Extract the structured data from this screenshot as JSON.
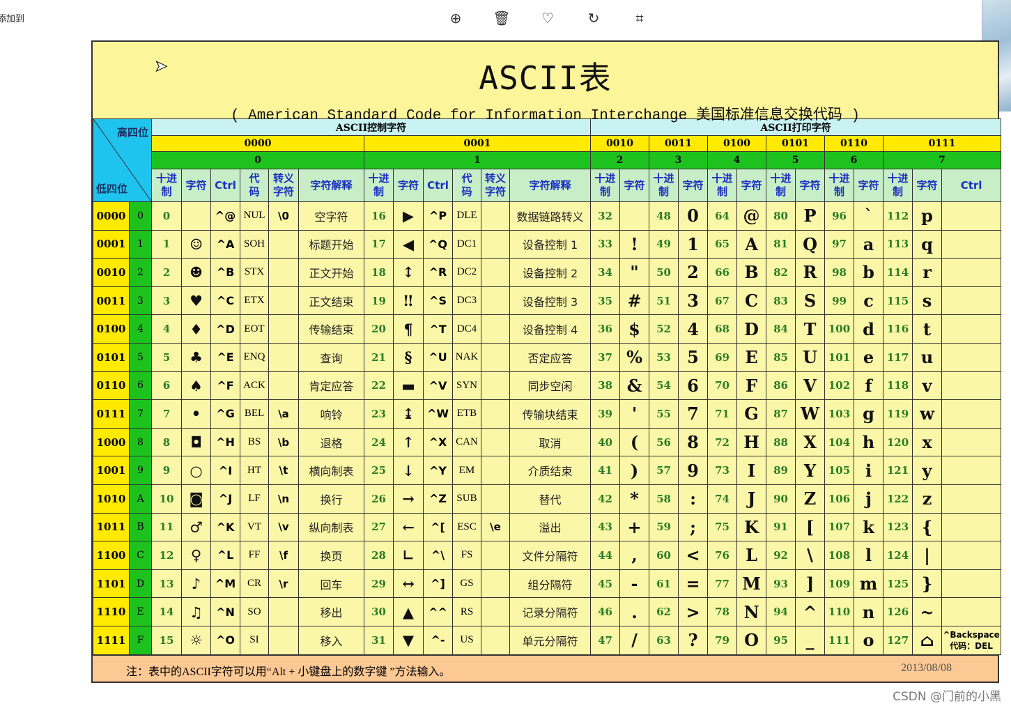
{
  "top_bar": {
    "left_text": "添加到",
    "icons": [
      "zoom-in-icon",
      "trash-icon",
      "heart-icon",
      "rotate-icon",
      "crop-icon"
    ]
  },
  "title": "ASCII表",
  "subtitle": "( American Standard Code for Information Interchange  美国标准信息交换代码 )",
  "headers": {
    "corner_high": "高四位",
    "corner_low": "低四位",
    "control_group": "ASCII控制字符",
    "print_group": "ASCII打印字符",
    "high_bits": [
      "0000",
      "0001",
      "0010",
      "0011",
      "0100",
      "0101",
      "0110",
      "0111"
    ],
    "high_hex": [
      "0",
      "1",
      "2",
      "3",
      "4",
      "5",
      "6",
      "7"
    ],
    "ctrl_cols": [
      "十进\n制",
      "字符",
      "Ctrl",
      "代\n码",
      "转义\n字符",
      "字符解释"
    ],
    "print_cols": [
      "十进\n制",
      "字符"
    ],
    "last_ctrl": "Ctrl"
  },
  "rows": [
    {
      "bin": "0000",
      "hex": "0",
      "c0": [
        "0",
        "",
        "^@",
        "NUL",
        "\\0",
        "空字符"
      ],
      "c1": [
        "16",
        "▶",
        "^P",
        "DLE",
        "",
        "数据链路转义"
      ],
      "p": [
        [
          "32",
          ""
        ],
        [
          "48",
          "0"
        ],
        [
          "64",
          "@"
        ],
        [
          "80",
          "P"
        ],
        [
          "96",
          "`"
        ],
        [
          "112",
          "p"
        ]
      ]
    },
    {
      "bin": "0001",
      "hex": "1",
      "c0": [
        "1",
        "☺",
        "^A",
        "SOH",
        "",
        "标题开始"
      ],
      "c1": [
        "17",
        "◀",
        "^Q",
        "DC1",
        "",
        "设备控制 1"
      ],
      "p": [
        [
          "33",
          "!"
        ],
        [
          "49",
          "1"
        ],
        [
          "65",
          "A"
        ],
        [
          "81",
          "Q"
        ],
        [
          "97",
          "a"
        ],
        [
          "113",
          "q"
        ]
      ]
    },
    {
      "bin": "0010",
      "hex": "2",
      "c0": [
        "2",
        "☻",
        "^B",
        "STX",
        "",
        "正文开始"
      ],
      "c1": [
        "18",
        "↕",
        "^R",
        "DC2",
        "",
        "设备控制 2"
      ],
      "p": [
        [
          "34",
          "\""
        ],
        [
          "50",
          "2"
        ],
        [
          "66",
          "B"
        ],
        [
          "82",
          "R"
        ],
        [
          "98",
          "b"
        ],
        [
          "114",
          "r"
        ]
      ]
    },
    {
      "bin": "0011",
      "hex": "3",
      "c0": [
        "3",
        "♥",
        "^C",
        "ETX",
        "",
        "正文结束"
      ],
      "c1": [
        "19",
        "‼",
        "^S",
        "DC3",
        "",
        "设备控制 3"
      ],
      "p": [
        [
          "35",
          "#"
        ],
        [
          "51",
          "3"
        ],
        [
          "67",
          "C"
        ],
        [
          "83",
          "S"
        ],
        [
          "99",
          "c"
        ],
        [
          "115",
          "s"
        ]
      ]
    },
    {
      "bin": "0100",
      "hex": "4",
      "c0": [
        "4",
        "♦",
        "^D",
        "EOT",
        "",
        "传输结束"
      ],
      "c1": [
        "20",
        "¶",
        "^T",
        "DC4",
        "",
        "设备控制 4"
      ],
      "p": [
        [
          "36",
          "$"
        ],
        [
          "52",
          "4"
        ],
        [
          "68",
          "D"
        ],
        [
          "84",
          "T"
        ],
        [
          "100",
          "d"
        ],
        [
          "116",
          "t"
        ]
      ]
    },
    {
      "bin": "0101",
      "hex": "5",
      "c0": [
        "5",
        "♣",
        "^E",
        "ENQ",
        "",
        "查询"
      ],
      "c1": [
        "21",
        "§",
        "^U",
        "NAK",
        "",
        "否定应答"
      ],
      "p": [
        [
          "37",
          "%"
        ],
        [
          "53",
          "5"
        ],
        [
          "69",
          "E"
        ],
        [
          "85",
          "U"
        ],
        [
          "101",
          "e"
        ],
        [
          "117",
          "u"
        ]
      ]
    },
    {
      "bin": "0110",
      "hex": "6",
      "c0": [
        "6",
        "♠",
        "^F",
        "ACK",
        "",
        "肯定应答"
      ],
      "c1": [
        "22",
        "▬",
        "^V",
        "SYN",
        "",
        "同步空闲"
      ],
      "p": [
        [
          "38",
          "&"
        ],
        [
          "54",
          "6"
        ],
        [
          "70",
          "F"
        ],
        [
          "86",
          "V"
        ],
        [
          "102",
          "f"
        ],
        [
          "118",
          "v"
        ]
      ]
    },
    {
      "bin": "0111",
      "hex": "7",
      "c0": [
        "7",
        "•",
        "^G",
        "BEL",
        "\\a",
        "响铃"
      ],
      "c1": [
        "23",
        "↨",
        "^W",
        "ETB",
        "",
        "传输块结束"
      ],
      "p": [
        [
          "39",
          "'"
        ],
        [
          "55",
          "7"
        ],
        [
          "71",
          "G"
        ],
        [
          "87",
          "W"
        ],
        [
          "103",
          "g"
        ],
        [
          "119",
          "w"
        ]
      ]
    },
    {
      "bin": "1000",
      "hex": "8",
      "c0": [
        "8",
        "◘",
        "^H",
        "BS",
        "\\b",
        "退格"
      ],
      "c1": [
        "24",
        "↑",
        "^X",
        "CAN",
        "",
        "取消"
      ],
      "p": [
        [
          "40",
          "("
        ],
        [
          "56",
          "8"
        ],
        [
          "72",
          "H"
        ],
        [
          "88",
          "X"
        ],
        [
          "104",
          "h"
        ],
        [
          "120",
          "x"
        ]
      ]
    },
    {
      "bin": "1001",
      "hex": "9",
      "c0": [
        "9",
        "○",
        "^I",
        "HT",
        "\\t",
        "横向制表"
      ],
      "c1": [
        "25",
        "↓",
        "^Y",
        "EM",
        "",
        "介质结束"
      ],
      "p": [
        [
          "41",
          ")"
        ],
        [
          "57",
          "9"
        ],
        [
          "73",
          "I"
        ],
        [
          "89",
          "Y"
        ],
        [
          "105",
          "i"
        ],
        [
          "121",
          "y"
        ]
      ]
    },
    {
      "bin": "1010",
      "hex": "A",
      "c0": [
        "10",
        "◙",
        "^J",
        "LF",
        "\\n",
        "换行"
      ],
      "c1": [
        "26",
        "→",
        "^Z",
        "SUB",
        "",
        "替代"
      ],
      "p": [
        [
          "42",
          "*"
        ],
        [
          "58",
          ":"
        ],
        [
          "74",
          "J"
        ],
        [
          "90",
          "Z"
        ],
        [
          "106",
          "j"
        ],
        [
          "122",
          "z"
        ]
      ]
    },
    {
      "bin": "1011",
      "hex": "B",
      "c0": [
        "11",
        "♂",
        "^K",
        "VT",
        "\\v",
        "纵向制表"
      ],
      "c1": [
        "27",
        "←",
        "^[",
        "ESC",
        "\\e",
        "溢出"
      ],
      "p": [
        [
          "43",
          "+"
        ],
        [
          "59",
          ";"
        ],
        [
          "75",
          "K"
        ],
        [
          "91",
          "["
        ],
        [
          "107",
          "k"
        ],
        [
          "123",
          "{"
        ]
      ]
    },
    {
      "bin": "1100",
      "hex": "C",
      "c0": [
        "12",
        "♀",
        "^L",
        "FF",
        "\\f",
        "换页"
      ],
      "c1": [
        "28",
        "∟",
        "^\\",
        "FS",
        "",
        "文件分隔符"
      ],
      "p": [
        [
          "44",
          ","
        ],
        [
          "60",
          "<"
        ],
        [
          "76",
          "L"
        ],
        [
          "92",
          "\\"
        ],
        [
          "108",
          "l"
        ],
        [
          "124",
          "|"
        ]
      ]
    },
    {
      "bin": "1101",
      "hex": "D",
      "c0": [
        "13",
        "♪",
        "^M",
        "CR",
        "\\r",
        "回车"
      ],
      "c1": [
        "29",
        "↔",
        "^]",
        "GS",
        "",
        "组分隔符"
      ],
      "p": [
        [
          "45",
          "-"
        ],
        [
          "61",
          "="
        ],
        [
          "77",
          "M"
        ],
        [
          "93",
          "]"
        ],
        [
          "109",
          "m"
        ],
        [
          "125",
          "}"
        ]
      ]
    },
    {
      "bin": "1110",
      "hex": "E",
      "c0": [
        "14",
        "♫",
        "^N",
        "SO",
        "",
        "移出"
      ],
      "c1": [
        "30",
        "▲",
        "^^",
        "RS",
        "",
        "记录分隔符"
      ],
      "p": [
        [
          "46",
          "."
        ],
        [
          "62",
          ">"
        ],
        [
          "78",
          "N"
        ],
        [
          "94",
          "^"
        ],
        [
          "110",
          "n"
        ],
        [
          "126",
          "~"
        ]
      ]
    },
    {
      "bin": "1111",
      "hex": "F",
      "c0": [
        "15",
        "☼",
        "^O",
        "SI",
        "",
        "移入"
      ],
      "c1": [
        "31",
        "▼",
        "^-",
        "US",
        "",
        "单元分隔符"
      ],
      "p": [
        [
          "47",
          "/"
        ],
        [
          "63",
          "?"
        ],
        [
          "79",
          "O"
        ],
        [
          "95",
          "_"
        ],
        [
          "111",
          "o"
        ],
        [
          "127",
          "⌂"
        ]
      ]
    }
  ],
  "del_ctrl": {
    "line1": "^Backspace",
    "line2": "代码：DEL"
  },
  "footer": {
    "note": "注：表中的ASCII字符可以用“Alt + 小键盘上的数字键 ”方法输入。",
    "date": "2013/08/08"
  },
  "watermark": "CSDN @门前的小黑"
}
